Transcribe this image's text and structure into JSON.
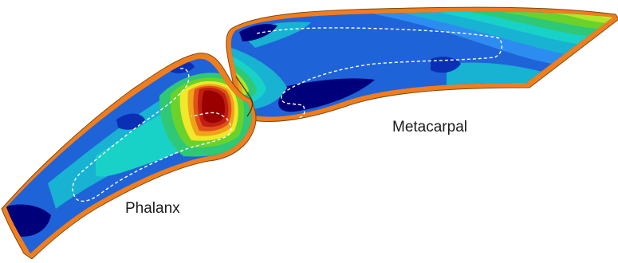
{
  "labels": {
    "metacarpal": "Metacarpal",
    "phalanx": "Phalanx"
  },
  "colors": {
    "cortical_shell": "#f07d1e",
    "outline": "#5a3a10",
    "dashed_boundary": "#ffffff",
    "stress_scale": [
      "#00007a",
      "#0a2fb4",
      "#1f63d8",
      "#2d8cf0",
      "#18b2d2",
      "#18d2c8",
      "#2ec877",
      "#6bd22c",
      "#b0e52a",
      "#f0e82a",
      "#f0a21a",
      "#e0501a",
      "#c01f10",
      "#9a0000"
    ]
  },
  "regions": [
    "metacarpal",
    "phalanx",
    "joint-contact-zone"
  ]
}
